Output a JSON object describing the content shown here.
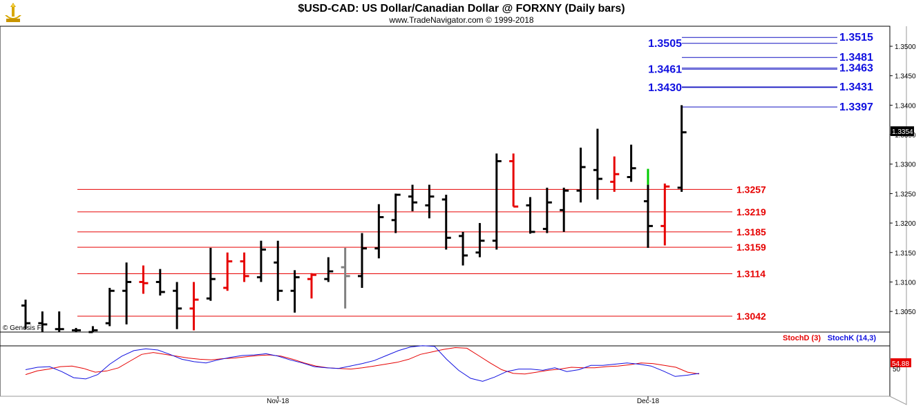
{
  "header": {
    "title": "$USD-CAD:  US Dollar/Canadian Dollar @ FORXNY  (Daily bars)",
    "subtitle": "www.TradeNavigator.com © 1999-2018"
  },
  "copyright_label": "© Genesis F.",
  "colors": {
    "support_line": "#e60000",
    "resistance_line": "#1010c0",
    "up_bar": "#000000",
    "down_bar": "#e60000",
    "neutral_bar": "#808080",
    "special_bar": "#00cc00",
    "stoch_d": "#e60000",
    "stoch_k": "#1010e0"
  },
  "chart_data": [
    {
      "type": "ohlc",
      "title": "$USD-CAD:  US Dollar/Canadian Dollar @ FORXNY  (Daily bars)",
      "ylim": [
        1.3015,
        1.3534
      ],
      "yticks": [
        "1.3050",
        "1.3100",
        "1.3150",
        "1.3200",
        "1.3250",
        "1.3300",
        "1.3350",
        "1.3400",
        "1.3450",
        "1.3500"
      ],
      "last_price_label": "1.3354",
      "x_labels": [
        {
          "label": "Nov-18",
          "bar": 15
        },
        {
          "label": "Dec-18",
          "bar": 37
        }
      ],
      "bars": [
        {
          "o": 1.306,
          "h": 1.307,
          "l": 1.302,
          "c": 1.303,
          "color": "black"
        },
        {
          "o": 1.303,
          "h": 1.305,
          "l": 1.3015,
          "c": 1.3028,
          "color": "black"
        },
        {
          "o": 1.302,
          "h": 1.305,
          "l": 1.3015,
          "c": 1.302,
          "color": "black"
        },
        {
          "o": 1.3018,
          "h": 1.3022,
          "l": 1.3015,
          "c": 1.3018,
          "color": "black"
        },
        {
          "o": 1.3015,
          "h": 1.3025,
          "l": 1.3015,
          "c": 1.3018,
          "color": "black"
        },
        {
          "o": 1.303,
          "h": 1.309,
          "l": 1.3025,
          "c": 1.3085,
          "color": "black"
        },
        {
          "o": 1.3085,
          "h": 1.3133,
          "l": 1.3028,
          "c": 1.31,
          "color": "black"
        },
        {
          "o": 1.31,
          "h": 1.3128,
          "l": 1.308,
          "c": 1.3098,
          "color": "red"
        },
        {
          "o": 1.31,
          "h": 1.3122,
          "l": 1.3077,
          "c": 1.3083,
          "color": "black"
        },
        {
          "o": 1.3085,
          "h": 1.31,
          "l": 1.302,
          "c": 1.3055,
          "color": "black"
        },
        {
          "o": 1.3055,
          "h": 1.31,
          "l": 1.3018,
          "c": 1.307,
          "color": "red"
        },
        {
          "o": 1.3072,
          "h": 1.3158,
          "l": 1.3068,
          "c": 1.3105,
          "color": "black"
        },
        {
          "o": 1.309,
          "h": 1.315,
          "l": 1.3085,
          "c": 1.3135,
          "color": "red"
        },
        {
          "o": 1.3135,
          "h": 1.315,
          "l": 1.31,
          "c": 1.311,
          "color": "red"
        },
        {
          "o": 1.3108,
          "h": 1.317,
          "l": 1.31,
          "c": 1.3155,
          "color": "black"
        },
        {
          "o": 1.3133,
          "h": 1.317,
          "l": 1.3068,
          "c": 1.3085,
          "color": "black"
        },
        {
          "o": 1.3085,
          "h": 1.312,
          "l": 1.3048,
          "c": 1.3108,
          "color": "black"
        },
        {
          "o": 1.3105,
          "h": 1.3115,
          "l": 1.3072,
          "c": 1.3112,
          "color": "red"
        },
        {
          "o": 1.3105,
          "h": 1.3142,
          "l": 1.31,
          "c": 1.3118,
          "color": "black"
        },
        {
          "o": 1.3125,
          "h": 1.3158,
          "l": 1.3055,
          "c": 1.311,
          "color": "gray"
        },
        {
          "o": 1.311,
          "h": 1.3183,
          "l": 1.309,
          "c": 1.3157,
          "color": "black"
        },
        {
          "o": 1.3157,
          "h": 1.3232,
          "l": 1.314,
          "c": 1.321,
          "color": "black"
        },
        {
          "o": 1.3205,
          "h": 1.325,
          "l": 1.3183,
          "c": 1.3248,
          "color": "black"
        },
        {
          "o": 1.3245,
          "h": 1.3265,
          "l": 1.322,
          "c": 1.3235,
          "color": "black"
        },
        {
          "o": 1.323,
          "h": 1.3265,
          "l": 1.3208,
          "c": 1.3245,
          "color": "black"
        },
        {
          "o": 1.324,
          "h": 1.3248,
          "l": 1.3155,
          "c": 1.3175,
          "color": "black"
        },
        {
          "o": 1.3178,
          "h": 1.3185,
          "l": 1.3128,
          "c": 1.3145,
          "color": "black"
        },
        {
          "o": 1.315,
          "h": 1.32,
          "l": 1.3142,
          "c": 1.317,
          "color": "black"
        },
        {
          "o": 1.317,
          "h": 1.3318,
          "l": 1.3155,
          "c": 1.3305,
          "color": "black"
        },
        {
          "o": 1.3305,
          "h": 1.3318,
          "l": 1.3228,
          "c": 1.3228,
          "color": "red"
        },
        {
          "o": 1.323,
          "h": 1.3244,
          "l": 1.3182,
          "c": 1.3185,
          "color": "black"
        },
        {
          "o": 1.319,
          "h": 1.326,
          "l": 1.3183,
          "c": 1.3235,
          "color": "black"
        },
        {
          "o": 1.3222,
          "h": 1.326,
          "l": 1.3185,
          "c": 1.3255,
          "color": "black"
        },
        {
          "o": 1.3255,
          "h": 1.3328,
          "l": 1.3235,
          "c": 1.3295,
          "color": "black"
        },
        {
          "o": 1.329,
          "h": 1.336,
          "l": 1.324,
          "c": 1.3275,
          "color": "black"
        },
        {
          "o": 1.327,
          "h": 1.3313,
          "l": 1.3253,
          "c": 1.3283,
          "color": "red"
        },
        {
          "o": 1.3278,
          "h": 1.3333,
          "l": 1.327,
          "c": 1.3293,
          "color": "black"
        },
        {
          "o": 1.3237,
          "h": 1.3292,
          "l": 1.3158,
          "c": 1.3195,
          "color": "black",
          "top_color": "green"
        },
        {
          "o": 1.3195,
          "h": 1.3267,
          "l": 1.3162,
          "c": 1.3262,
          "color": "red"
        },
        {
          "o": 1.326,
          "h": 1.34,
          "l": 1.3253,
          "c": 1.3354,
          "color": "black"
        }
      ],
      "support_levels": [
        "1.3257",
        "1.3219",
        "1.3185",
        "1.3159",
        "1.3114",
        "1.3042"
      ],
      "resistance_levels": [
        {
          "left": "1.3505",
          "right": "1.3515"
        },
        {
          "left": "",
          "right": "1.3481"
        },
        {
          "left": "1.3461",
          "right": "1.3463"
        },
        {
          "left": "1.3430",
          "right": "1.3431"
        },
        {
          "left": "",
          "right": "1.3397"
        }
      ]
    },
    {
      "type": "line",
      "title": "",
      "ylim": [
        0,
        100
      ],
      "value_label": "54.88",
      "bottom_tick": "50",
      "series": [
        {
          "name": "StochD (3)",
          "color": "#e60000",
          "values": [
            33,
            39,
            42,
            46,
            47,
            43,
            37,
            39,
            44,
            55,
            66,
            69,
            66,
            63,
            60,
            58,
            57,
            59,
            60,
            62,
            64,
            65,
            63,
            58,
            52,
            47,
            44,
            43,
            42,
            44,
            47,
            50,
            53,
            58,
            66,
            70,
            74,
            77,
            76,
            64,
            52,
            41,
            35,
            34,
            37,
            40,
            42,
            45,
            44,
            44,
            46,
            47,
            49,
            52,
            51,
            48,
            45,
            37,
            34
          ]
        },
        {
          "name": "StochK (14,3)",
          "color": "#1010e0",
          "values": [
            41,
            45,
            46,
            38,
            28,
            26,
            33,
            50,
            63,
            72,
            75,
            73,
            66,
            58,
            54,
            52,
            57,
            61,
            64,
            65,
            67,
            63,
            57,
            52,
            46,
            44,
            43,
            47,
            51,
            56,
            64,
            72,
            78,
            80,
            79,
            58,
            40,
            27,
            22,
            29,
            38,
            42,
            42,
            40,
            44,
            38,
            41,
            48,
            48,
            50,
            52,
            50,
            47,
            39,
            30,
            32,
            35
          ]
        }
      ]
    }
  ]
}
